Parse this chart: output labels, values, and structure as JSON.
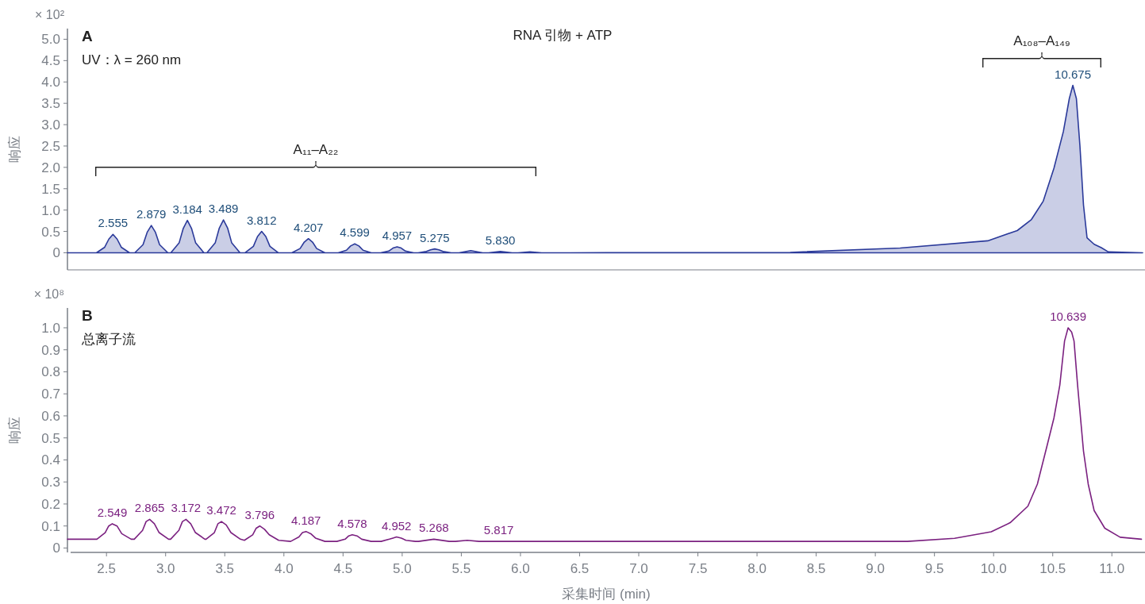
{
  "chart_data": [
    {
      "type": "area",
      "title": "RNA 引物 + ATP",
      "ylabel": "响应",
      "xlim": [
        2.17,
        11.28
      ],
      "ylim": [
        -0.4,
        5.25
      ],
      "tick_labels": "y",
      "yticks": [
        0,
        {
          "value": 0.5,
          "label": "0.5"
        },
        {
          "value": 1,
          "label": "1.0"
        },
        {
          "value": 1.5,
          "label": "1.5"
        },
        {
          "value": 2,
          "label": "2.0"
        },
        {
          "value": 2.5,
          "label": "2.5"
        },
        {
          "value": 3,
          "label": "3.0"
        },
        {
          "value": 3.5,
          "label": "3.5"
        },
        {
          "value": 4,
          "label": "4.0"
        },
        {
          "value": 4.5,
          "label": "4.5"
        },
        {
          "value": 5,
          "label": "5.0"
        }
      ],
      "series": [
        {
          "color": "#2b3a9a",
          "x": [
            2.17,
            2.3,
            2.415,
            2.485,
            2.52,
            2.555,
            2.59,
            2.625,
            2.695,
            2.739,
            2.809,
            2.844,
            2.879,
            2.914,
            2.949,
            3.019,
            3.044,
            3.114,
            3.149,
            3.184,
            3.219,
            3.254,
            3.324,
            3.349,
            3.419,
            3.454,
            3.489,
            3.524,
            3.559,
            3.629,
            3.672,
            3.742,
            3.777,
            3.812,
            3.847,
            3.882,
            3.952,
            4.067,
            4.137,
            4.172,
            4.207,
            4.242,
            4.277,
            4.347,
            4.459,
            4.529,
            4.564,
            4.599,
            4.634,
            4.669,
            4.739,
            4.817,
            4.887,
            4.922,
            4.957,
            4.992,
            5.027,
            5.097,
            5.135,
            5.205,
            5.24,
            5.275,
            5.31,
            5.345,
            5.415,
            5.48,
            5.58,
            5.68,
            5.73,
            5.83,
            5.93,
            5.98,
            6.08,
            6.18,
            6.42,
            8.28,
            9.21,
            9.95,
            10.2,
            10.32,
            10.42,
            10.51,
            10.59,
            10.64,
            10.67,
            10.7,
            10.73,
            10.76,
            10.79,
            10.85,
            10.91,
            10.97,
            11.26
          ],
          "values": [
            0,
            0,
            0,
            0.13,
            0.32,
            0.43,
            0.32,
            0.13,
            0,
            0,
            0.19,
            0.48,
            0.64,
            0.48,
            0.19,
            0,
            0,
            0.23,
            0.57,
            0.76,
            0.57,
            0.23,
            0,
            0,
            0.23,
            0.58,
            0.77,
            0.58,
            0.23,
            0,
            0,
            0.15,
            0.38,
            0.5,
            0.38,
            0.15,
            0,
            0,
            0.1,
            0.25,
            0.33,
            0.25,
            0.1,
            0,
            0,
            0.06,
            0.16,
            0.21,
            0.16,
            0.06,
            0,
            0,
            0.04,
            0.11,
            0.14,
            0.11,
            0.04,
            0,
            0,
            0.03,
            0.07,
            0.09,
            0.07,
            0.03,
            0,
            0,
            0.05,
            0,
            0,
            0.03,
            0,
            0,
            0.02,
            0,
            0,
            0.01,
            0.11,
            0.28,
            0.52,
            0.78,
            1.21,
            1.98,
            2.84,
            3.61,
            3.92,
            3.61,
            2.5,
            1.12,
            0.35,
            0.2,
            0.12,
            0.02,
            0
          ]
        }
      ],
      "annotations": [
        "A",
        "UV：λ = 260 nm",
        "× 10²",
        "A₁₁–A₂₂",
        "A₁₀₈–A₁₄₉",
        {
          "text": "2.555",
          "x": 2.555,
          "y": 0.43
        },
        {
          "text": "2.879",
          "x": 2.879,
          "y": 0.64
        },
        {
          "text": "3.184",
          "x": 3.184,
          "y": 0.76
        },
        {
          "text": "3.489",
          "x": 3.489,
          "y": 0.77
        },
        {
          "text": "3.812",
          "x": 3.812,
          "y": 0.5
        },
        {
          "text": "4.207",
          "x": 4.207,
          "y": 0.33
        },
        {
          "text": "4.599",
          "x": 4.599,
          "y": 0.21
        },
        {
          "text": "4.957",
          "x": 4.957,
          "y": 0.14
        },
        {
          "text": "5.275",
          "x": 5.275,
          "y": 0.09
        },
        {
          "text": "5.830",
          "x": 5.83,
          "y": 0.03
        },
        {
          "text": "10.675",
          "x": 10.67,
          "y": 3.92
        }
      ]
    },
    {
      "type": "line",
      "xlabel": "采集时间 (min)",
      "ylabel": "响应",
      "xlim": [
        2.17,
        11.28
      ],
      "ylim": [
        -0.02,
        1.09
      ],
      "xticks": [
        {
          "value": 2.5,
          "label": "2.5"
        },
        {
          "value": 3,
          "label": "3.0"
        },
        {
          "value": 3.5,
          "label": "3.5"
        },
        {
          "value": 4,
          "label": "4.0"
        },
        {
          "value": 4.5,
          "label": "4.5"
        },
        {
          "value": 5,
          "label": "5.0"
        },
        {
          "value": 5.5,
          "label": "5.5"
        },
        {
          "value": 6,
          "label": "6.0"
        },
        {
          "value": 6.5,
          "label": "6.5"
        },
        {
          "value": 7,
          "label": "7.0"
        },
        {
          "value": 7.5,
          "label": "7.5"
        },
        {
          "value": 8,
          "label": "8.0"
        },
        {
          "value": 8.5,
          "label": "8.5"
        },
        {
          "value": 9,
          "label": "9.0"
        },
        {
          "value": 9.5,
          "label": "9.5"
        },
        {
          "value": 10,
          "label": "10.0"
        },
        {
          "value": 10.5,
          "label": "10.5"
        },
        {
          "value": 11,
          "label": "11.0"
        }
      ],
      "yticks": [
        0,
        0.1,
        0.2,
        0.3,
        0.4,
        0.5,
        0.6,
        0.7,
        0.8,
        0.9,
        {
          "value": 1,
          "label": "1.0"
        }
      ],
      "series": [
        {
          "color": "#7b2180",
          "x": [
            2.17,
            2.419,
            2.489,
            2.519,
            2.549,
            2.589,
            2.629,
            2.709,
            2.735,
            2.805,
            2.835,
            2.865,
            2.905,
            2.945,
            3.025,
            3.042,
            3.112,
            3.142,
            3.172,
            3.212,
            3.252,
            3.332,
            3.342,
            3.412,
            3.442,
            3.472,
            3.512,
            3.552,
            3.632,
            3.666,
            3.736,
            3.766,
            3.796,
            3.836,
            3.876,
            3.956,
            4.057,
            4.127,
            4.157,
            4.187,
            4.227,
            4.267,
            4.347,
            4.448,
            4.518,
            4.548,
            4.578,
            4.618,
            4.658,
            4.738,
            4.822,
            4.892,
            4.922,
            4.952,
            4.992,
            5.032,
            5.112,
            5.138,
            5.268,
            5.398,
            5.45,
            5.55,
            5.65,
            6.5,
            8.5,
            9.27,
            9.67,
            9.98,
            10.14,
            10.29,
            10.37,
            10.45,
            10.51,
            10.56,
            10.6,
            10.63,
            10.66,
            10.68,
            10.71,
            10.76,
            10.8,
            10.85,
            10.94,
            11.07,
            11.25
          ],
          "values": [
            0.04,
            0.04,
            0.07,
            0.1,
            0.11,
            0.1,
            0.065,
            0.04,
            0.04,
            0.08,
            0.12,
            0.13,
            0.11,
            0.07,
            0.04,
            0.04,
            0.08,
            0.12,
            0.13,
            0.11,
            0.07,
            0.04,
            0.04,
            0.07,
            0.11,
            0.12,
            0.105,
            0.07,
            0.04,
            0.035,
            0.06,
            0.09,
            0.1,
            0.085,
            0.06,
            0.035,
            0.03,
            0.05,
            0.07,
            0.075,
            0.065,
            0.045,
            0.03,
            0.03,
            0.04,
            0.055,
            0.06,
            0.055,
            0.04,
            0.03,
            0.03,
            0.04,
            0.045,
            0.05,
            0.045,
            0.035,
            0.03,
            0.03,
            0.04,
            0.03,
            0.03,
            0.035,
            0.03,
            0.03,
            0.03,
            0.03,
            0.044,
            0.074,
            0.115,
            0.19,
            0.29,
            0.46,
            0.59,
            0.74,
            0.94,
            1.0,
            0.98,
            0.94,
            0.74,
            0.44,
            0.29,
            0.17,
            0.09,
            0.049,
            0.04
          ]
        }
      ],
      "annotations": [
        "B",
        "总离子流",
        "× 10⁸",
        {
          "text": "2.549",
          "x": 2.549,
          "y": 0.11
        },
        {
          "text": "2.865",
          "x": 2.865,
          "y": 0.13
        },
        {
          "text": "3.172",
          "x": 3.172,
          "y": 0.13
        },
        {
          "text": "3.472",
          "x": 3.472,
          "y": 0.12
        },
        {
          "text": "3.796",
          "x": 3.796,
          "y": 0.1
        },
        {
          "text": "4.187",
          "x": 4.187,
          "y": 0.075
        },
        {
          "text": "4.578",
          "x": 4.578,
          "y": 0.06
        },
        {
          "text": "4.952",
          "x": 4.952,
          "y": 0.05
        },
        {
          "text": "5.268",
          "x": 5.268,
          "y": 0.04
        },
        {
          "text": "5.817",
          "x": 5.817,
          "y": 0.03
        },
        {
          "text": "10.639",
          "x": 10.63,
          "y": 1.0
        }
      ]
    }
  ]
}
